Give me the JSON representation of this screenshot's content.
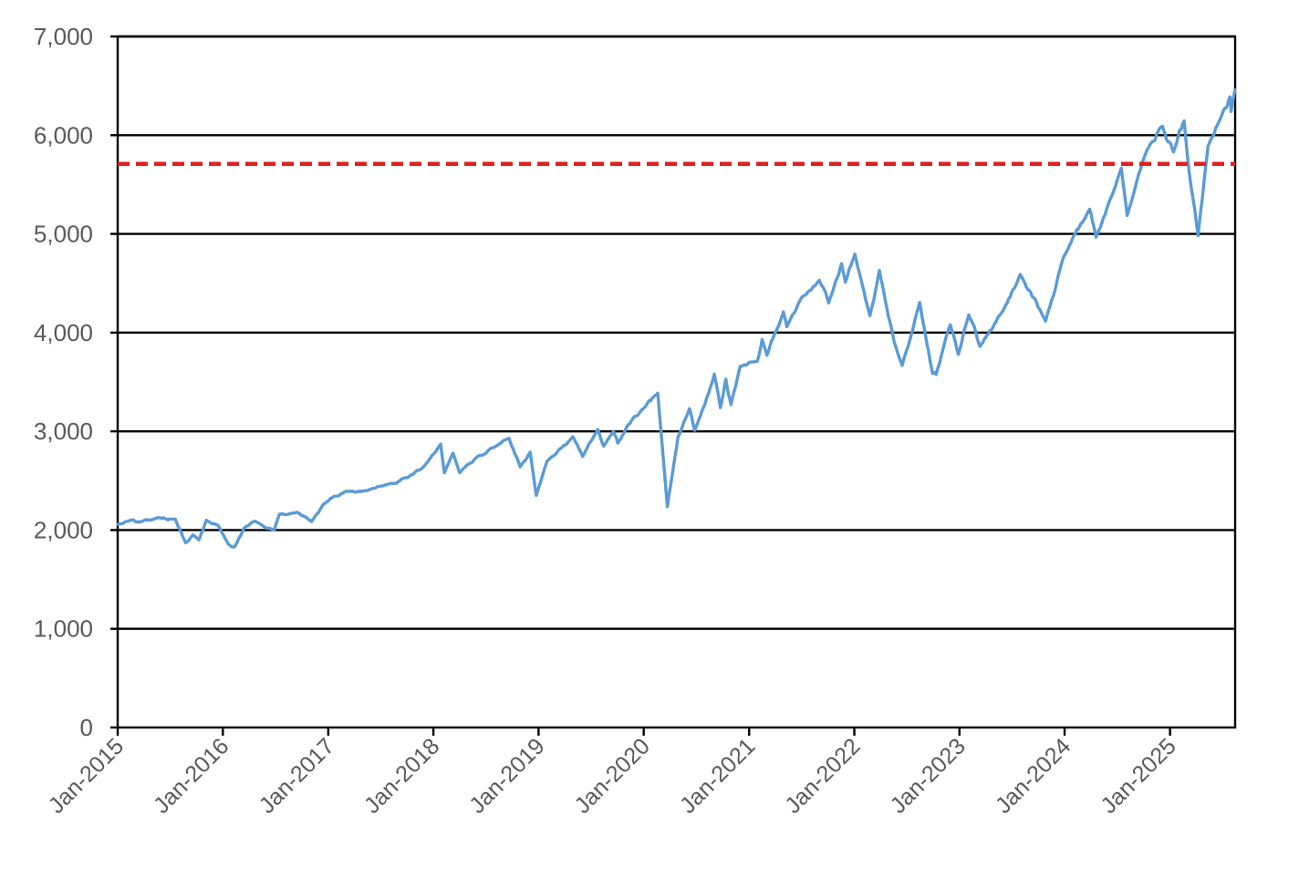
{
  "chart_data": {
    "type": "line",
    "title": "",
    "xlabel": "",
    "ylabel": "",
    "ylim": [
      0,
      7000
    ],
    "xlim": [
      "2015-01-01",
      "2025-08-15"
    ],
    "grid": true,
    "legend": "none",
    "y_ticks": [
      {
        "value": 0,
        "label": "0"
      },
      {
        "value": 1000,
        "label": "1,000"
      },
      {
        "value": 2000,
        "label": "2,000"
      },
      {
        "value": 3000,
        "label": "3,000"
      },
      {
        "value": 4000,
        "label": "4,000"
      },
      {
        "value": 5000,
        "label": "5,000"
      },
      {
        "value": 6000,
        "label": "6,000"
      },
      {
        "value": 7000,
        "label": "7,000"
      }
    ],
    "x_ticks": [
      {
        "date": "2015-01-01",
        "label": "Jan-2015"
      },
      {
        "date": "2016-01-01",
        "label": "Jan-2016"
      },
      {
        "date": "2017-01-01",
        "label": "Jan-2017"
      },
      {
        "date": "2018-01-01",
        "label": "Jan-2018"
      },
      {
        "date": "2019-01-01",
        "label": "Jan-2019"
      },
      {
        "date": "2020-01-01",
        "label": "Jan-2020"
      },
      {
        "date": "2021-01-01",
        "label": "Jan-2021"
      },
      {
        "date": "2022-01-01",
        "label": "Jan-2022"
      },
      {
        "date": "2023-01-01",
        "label": "Jan-2023"
      },
      {
        "date": "2024-01-01",
        "label": "Jan-2024"
      },
      {
        "date": "2025-01-01",
        "label": "Jan-2025"
      }
    ],
    "reference_line": {
      "value": 5710,
      "color": "#e01f1f",
      "style": "dashed"
    },
    "series": [
      {
        "color": "#5b9bd5",
        "points": [
          [
            "2015-01-02",
            2058
          ],
          [
            "2015-02-15",
            2100
          ],
          [
            "2015-03-15",
            2080
          ],
          [
            "2015-05-20",
            2125
          ],
          [
            "2015-07-20",
            2110
          ],
          [
            "2015-08-25",
            1870
          ],
          [
            "2015-09-20",
            1950
          ],
          [
            "2015-10-10",
            1900
          ],
          [
            "2015-11-05",
            2100
          ],
          [
            "2015-12-15",
            2050
          ],
          [
            "2016-01-20",
            1860
          ],
          [
            "2016-02-11",
            1829
          ],
          [
            "2016-03-15",
            2020
          ],
          [
            "2016-04-20",
            2090
          ],
          [
            "2016-06-27",
            2000
          ],
          [
            "2016-07-15",
            2160
          ],
          [
            "2016-09-15",
            2180
          ],
          [
            "2016-11-04",
            2085
          ],
          [
            "2016-12-15",
            2260
          ],
          [
            "2017-03-01",
            2390
          ],
          [
            "2017-05-15",
            2400
          ],
          [
            "2017-08-01",
            2470
          ],
          [
            "2017-10-01",
            2530
          ],
          [
            "2017-12-01",
            2650
          ],
          [
            "2018-01-26",
            2872
          ],
          [
            "2018-02-08",
            2580
          ],
          [
            "2018-03-10",
            2780
          ],
          [
            "2018-04-02",
            2580
          ],
          [
            "2018-06-01",
            2740
          ],
          [
            "2018-08-01",
            2840
          ],
          [
            "2018-09-20",
            2930
          ],
          [
            "2018-10-29",
            2640
          ],
          [
            "2018-12-03",
            2790
          ],
          [
            "2018-12-24",
            2351
          ],
          [
            "2019-01-31",
            2700
          ],
          [
            "2019-03-15",
            2820
          ],
          [
            "2019-04-30",
            2945
          ],
          [
            "2019-06-03",
            2745
          ],
          [
            "2019-07-26",
            3020
          ],
          [
            "2019-08-15",
            2850
          ],
          [
            "2019-09-18",
            3000
          ],
          [
            "2019-10-03",
            2880
          ],
          [
            "2019-11-30",
            3150
          ],
          [
            "2019-12-31",
            3230
          ],
          [
            "2020-02-19",
            3386
          ],
          [
            "2020-03-23",
            2237
          ],
          [
            "2020-04-29",
            2940
          ],
          [
            "2020-06-08",
            3230
          ],
          [
            "2020-06-26",
            3010
          ],
          [
            "2020-07-31",
            3270
          ],
          [
            "2020-09-02",
            3580
          ],
          [
            "2020-09-23",
            3240
          ],
          [
            "2020-10-12",
            3530
          ],
          [
            "2020-10-30",
            3270
          ],
          [
            "2020-12-01",
            3660
          ],
          [
            "2021-01-29",
            3710
          ],
          [
            "2021-02-15",
            3930
          ],
          [
            "2021-03-04",
            3770
          ],
          [
            "2021-04-30",
            4210
          ],
          [
            "2021-05-12",
            4060
          ],
          [
            "2021-07-01",
            4350
          ],
          [
            "2021-09-02",
            4530
          ],
          [
            "2021-10-04",
            4300
          ],
          [
            "2021-11-18",
            4700
          ],
          [
            "2021-12-01",
            4510
          ],
          [
            "2022-01-03",
            4796
          ],
          [
            "2022-02-24",
            4170
          ],
          [
            "2022-03-29",
            4630
          ],
          [
            "2022-05-20",
            3900
          ],
          [
            "2022-06-16",
            3667
          ],
          [
            "2022-08-16",
            4305
          ],
          [
            "2022-09-30",
            3585
          ],
          [
            "2022-10-12",
            3577
          ],
          [
            "2022-11-30",
            4080
          ],
          [
            "2022-12-28",
            3780
          ],
          [
            "2023-02-02",
            4180
          ],
          [
            "2023-03-13",
            3860
          ],
          [
            "2023-06-01",
            4220
          ],
          [
            "2023-07-31",
            4590
          ],
          [
            "2023-10-27",
            4117
          ],
          [
            "2023-12-29",
            4770
          ],
          [
            "2024-03-28",
            5250
          ],
          [
            "2024-04-19",
            4967
          ],
          [
            "2024-07-16",
            5667
          ],
          [
            "2024-08-05",
            5186
          ],
          [
            "2024-10-15",
            5860
          ],
          [
            "2024-12-06",
            6090
          ],
          [
            "2025-01-13",
            5830
          ],
          [
            "2025-02-19",
            6144
          ],
          [
            "2025-03-13",
            5520
          ],
          [
            "2025-04-08",
            4982
          ],
          [
            "2025-05-13",
            5890
          ],
          [
            "2025-06-30",
            6205
          ],
          [
            "2025-07-28",
            6389
          ],
          [
            "2025-08-01",
            6240
          ],
          [
            "2025-08-14",
            6460
          ]
        ]
      }
    ]
  }
}
